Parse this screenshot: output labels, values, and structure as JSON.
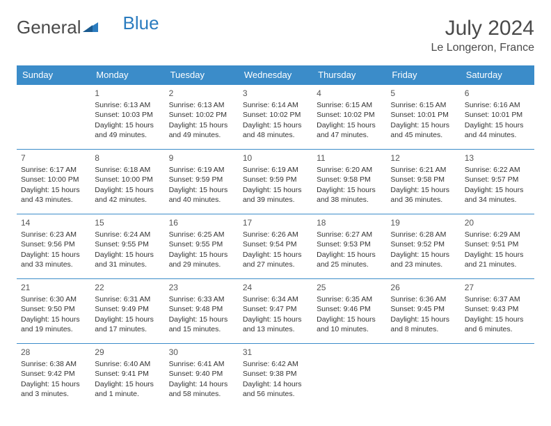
{
  "brand": {
    "part1": "General",
    "part2": "Blue"
  },
  "title": "July 2024",
  "subtitle": "Le Longeron, France",
  "colors": {
    "header_bg": "#3b8cc9",
    "header_text": "#ffffff",
    "border": "#3b8cc9",
    "body_text": "#333333",
    "title_text": "#4a4a4a",
    "background": "#ffffff"
  },
  "fonts": {
    "base_family": "Arial",
    "title_size_pt": 22,
    "subtitle_size_pt": 12,
    "cell_size_pt": 8,
    "header_size_pt": 10
  },
  "day_headers": [
    "Sunday",
    "Monday",
    "Tuesday",
    "Wednesday",
    "Thursday",
    "Friday",
    "Saturday"
  ],
  "weeks": [
    [
      null,
      {
        "n": "1",
        "sunrise": "Sunrise: 6:13 AM",
        "sunset": "Sunset: 10:03 PM",
        "daylight": "Daylight: 15 hours and 49 minutes."
      },
      {
        "n": "2",
        "sunrise": "Sunrise: 6:13 AM",
        "sunset": "Sunset: 10:02 PM",
        "daylight": "Daylight: 15 hours and 49 minutes."
      },
      {
        "n": "3",
        "sunrise": "Sunrise: 6:14 AM",
        "sunset": "Sunset: 10:02 PM",
        "daylight": "Daylight: 15 hours and 48 minutes."
      },
      {
        "n": "4",
        "sunrise": "Sunrise: 6:15 AM",
        "sunset": "Sunset: 10:02 PM",
        "daylight": "Daylight: 15 hours and 47 minutes."
      },
      {
        "n": "5",
        "sunrise": "Sunrise: 6:15 AM",
        "sunset": "Sunset: 10:01 PM",
        "daylight": "Daylight: 15 hours and 45 minutes."
      },
      {
        "n": "6",
        "sunrise": "Sunrise: 6:16 AM",
        "sunset": "Sunset: 10:01 PM",
        "daylight": "Daylight: 15 hours and 44 minutes."
      }
    ],
    [
      {
        "n": "7",
        "sunrise": "Sunrise: 6:17 AM",
        "sunset": "Sunset: 10:00 PM",
        "daylight": "Daylight: 15 hours and 43 minutes."
      },
      {
        "n": "8",
        "sunrise": "Sunrise: 6:18 AM",
        "sunset": "Sunset: 10:00 PM",
        "daylight": "Daylight: 15 hours and 42 minutes."
      },
      {
        "n": "9",
        "sunrise": "Sunrise: 6:19 AM",
        "sunset": "Sunset: 9:59 PM",
        "daylight": "Daylight: 15 hours and 40 minutes."
      },
      {
        "n": "10",
        "sunrise": "Sunrise: 6:19 AM",
        "sunset": "Sunset: 9:59 PM",
        "daylight": "Daylight: 15 hours and 39 minutes."
      },
      {
        "n": "11",
        "sunrise": "Sunrise: 6:20 AM",
        "sunset": "Sunset: 9:58 PM",
        "daylight": "Daylight: 15 hours and 38 minutes."
      },
      {
        "n": "12",
        "sunrise": "Sunrise: 6:21 AM",
        "sunset": "Sunset: 9:58 PM",
        "daylight": "Daylight: 15 hours and 36 minutes."
      },
      {
        "n": "13",
        "sunrise": "Sunrise: 6:22 AM",
        "sunset": "Sunset: 9:57 PM",
        "daylight": "Daylight: 15 hours and 34 minutes."
      }
    ],
    [
      {
        "n": "14",
        "sunrise": "Sunrise: 6:23 AM",
        "sunset": "Sunset: 9:56 PM",
        "daylight": "Daylight: 15 hours and 33 minutes."
      },
      {
        "n": "15",
        "sunrise": "Sunrise: 6:24 AM",
        "sunset": "Sunset: 9:55 PM",
        "daylight": "Daylight: 15 hours and 31 minutes."
      },
      {
        "n": "16",
        "sunrise": "Sunrise: 6:25 AM",
        "sunset": "Sunset: 9:55 PM",
        "daylight": "Daylight: 15 hours and 29 minutes."
      },
      {
        "n": "17",
        "sunrise": "Sunrise: 6:26 AM",
        "sunset": "Sunset: 9:54 PM",
        "daylight": "Daylight: 15 hours and 27 minutes."
      },
      {
        "n": "18",
        "sunrise": "Sunrise: 6:27 AM",
        "sunset": "Sunset: 9:53 PM",
        "daylight": "Daylight: 15 hours and 25 minutes."
      },
      {
        "n": "19",
        "sunrise": "Sunrise: 6:28 AM",
        "sunset": "Sunset: 9:52 PM",
        "daylight": "Daylight: 15 hours and 23 minutes."
      },
      {
        "n": "20",
        "sunrise": "Sunrise: 6:29 AM",
        "sunset": "Sunset: 9:51 PM",
        "daylight": "Daylight: 15 hours and 21 minutes."
      }
    ],
    [
      {
        "n": "21",
        "sunrise": "Sunrise: 6:30 AM",
        "sunset": "Sunset: 9:50 PM",
        "daylight": "Daylight: 15 hours and 19 minutes."
      },
      {
        "n": "22",
        "sunrise": "Sunrise: 6:31 AM",
        "sunset": "Sunset: 9:49 PM",
        "daylight": "Daylight: 15 hours and 17 minutes."
      },
      {
        "n": "23",
        "sunrise": "Sunrise: 6:33 AM",
        "sunset": "Sunset: 9:48 PM",
        "daylight": "Daylight: 15 hours and 15 minutes."
      },
      {
        "n": "24",
        "sunrise": "Sunrise: 6:34 AM",
        "sunset": "Sunset: 9:47 PM",
        "daylight": "Daylight: 15 hours and 13 minutes."
      },
      {
        "n": "25",
        "sunrise": "Sunrise: 6:35 AM",
        "sunset": "Sunset: 9:46 PM",
        "daylight": "Daylight: 15 hours and 10 minutes."
      },
      {
        "n": "26",
        "sunrise": "Sunrise: 6:36 AM",
        "sunset": "Sunset: 9:45 PM",
        "daylight": "Daylight: 15 hours and 8 minutes."
      },
      {
        "n": "27",
        "sunrise": "Sunrise: 6:37 AM",
        "sunset": "Sunset: 9:43 PM",
        "daylight": "Daylight: 15 hours and 6 minutes."
      }
    ],
    [
      {
        "n": "28",
        "sunrise": "Sunrise: 6:38 AM",
        "sunset": "Sunset: 9:42 PM",
        "daylight": "Daylight: 15 hours and 3 minutes."
      },
      {
        "n": "29",
        "sunrise": "Sunrise: 6:40 AM",
        "sunset": "Sunset: 9:41 PM",
        "daylight": "Daylight: 15 hours and 1 minute."
      },
      {
        "n": "30",
        "sunrise": "Sunrise: 6:41 AM",
        "sunset": "Sunset: 9:40 PM",
        "daylight": "Daylight: 14 hours and 58 minutes."
      },
      {
        "n": "31",
        "sunrise": "Sunrise: 6:42 AM",
        "sunset": "Sunset: 9:38 PM",
        "daylight": "Daylight: 14 hours and 56 minutes."
      },
      null,
      null,
      null
    ]
  ]
}
